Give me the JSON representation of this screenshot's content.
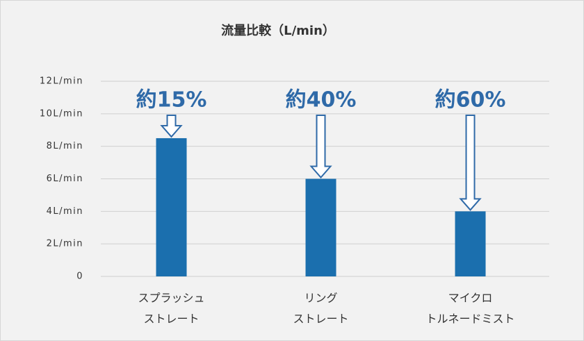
{
  "chart_data": {
    "type": "bar",
    "title": "流量比較（L/min）",
    "categories": [
      [
        "スプラッシュ",
        "ストレート"
      ],
      [
        "リング",
        "ストレート"
      ],
      [
        "マイクロ",
        "トルネードミスト"
      ]
    ],
    "values": [
      8.5,
      6,
      4
    ],
    "color": "#1b6fae",
    "annotations": [
      "約15%",
      "約40%",
      "約60%"
    ],
    "annotation_color": "#2f6aa8",
    "ylim": [
      0,
      12
    ],
    "yticks": [
      0,
      {
        "value": 2,
        "label": "2L/min"
      },
      {
        "value": 4,
        "label": "4L/min"
      },
      {
        "value": 6,
        "label": "6L/min"
      },
      {
        "value": 8,
        "label": "8L/min"
      },
      {
        "value": 10,
        "label": "10L/min"
      },
      {
        "value": 12,
        "label": "12L/min"
      }
    ],
    "grid": true
  }
}
